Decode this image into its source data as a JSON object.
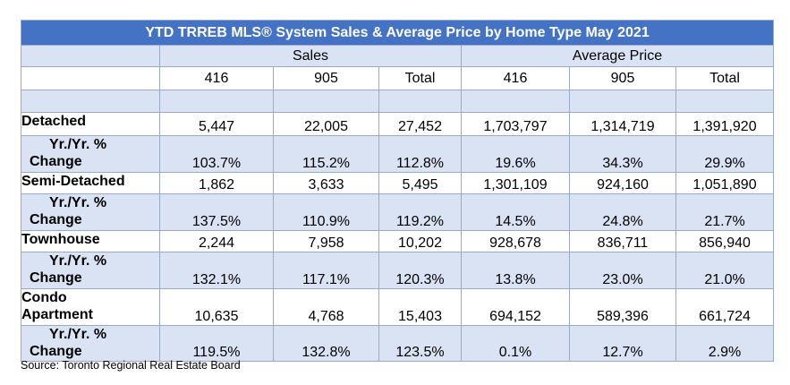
{
  "title": "YTD TRREB MLS® System Sales & Average Price by Home Type May 2021",
  "groups": {
    "sales": "Sales",
    "avg_price": "Average Price"
  },
  "columns": [
    "416",
    "905",
    "Total",
    "416",
    "905",
    "Total"
  ],
  "rows": [
    {
      "label": "Detached",
      "values": [
        "5,447",
        "22,005",
        "27,452",
        "1,703,797",
        "1,314,719",
        "1,391,920"
      ]
    },
    {
      "label_line1": "Yr./Yr. %",
      "label_line2": "Change",
      "values": [
        "103.7%",
        "115.2%",
        "112.8%",
        "19.6%",
        "34.3%",
        "29.9%"
      ]
    },
    {
      "label": "Semi-Detached",
      "values": [
        "1,862",
        "3,633",
        "5,495",
        "1,301,109",
        "924,160",
        "1,051,890"
      ]
    },
    {
      "label_line1": "Yr./Yr. %",
      "label_line2": "Change",
      "values": [
        "137.5%",
        "110.9%",
        "119.2%",
        "14.5%",
        "24.8%",
        "21.7%"
      ]
    },
    {
      "label": "Townhouse",
      "values": [
        "2,244",
        "7,958",
        "10,202",
        "928,678",
        "836,711",
        "856,940"
      ]
    },
    {
      "label_line1": "Yr./Yr. %",
      "label_line2": "Change",
      "values": [
        "132.1%",
        "117.1%",
        "120.3%",
        "13.8%",
        "23.0%",
        "21.0%"
      ]
    },
    {
      "label_line1": "Condo",
      "label_line2": "Apartment",
      "values": [
        "10,635",
        "4,768",
        "15,403",
        "694,152",
        "589,396",
        "661,724"
      ]
    },
    {
      "label_line1": "Yr./Yr. %",
      "label_line2": "Change",
      "values": [
        "119.5%",
        "132.8%",
        "123.5%",
        "0.1%",
        "12.7%",
        "2.9%"
      ]
    }
  ],
  "source": "Source: Toronto Regional Real Estate Board",
  "colors": {
    "header_blue": "#4472c4",
    "band_light": "#dae3f3",
    "border": "#9aa8c9"
  }
}
